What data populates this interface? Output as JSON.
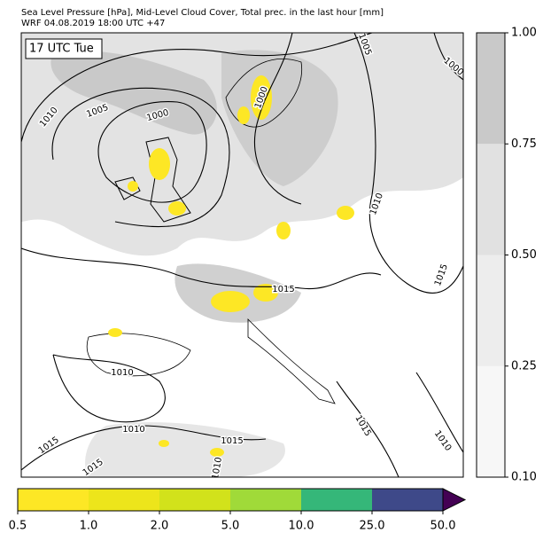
{
  "header": {
    "title": "Sea Level Pressure [hPa], Mid-Level Cloud Cover, Total prec. in the last hour [mm]",
    "subtitle": "WRF 04.08.2019 18:00 UTC +47"
  },
  "map": {
    "time_label": "17 UTC Tue",
    "contour_labels": [
      "1010",
      "1005",
      "1000",
      "1000",
      "1005",
      "1000",
      "1010",
      "1015",
      "1015",
      "1010",
      "1010",
      "1015",
      "1015",
      "1015",
      "1015",
      "1010",
      "1010"
    ]
  },
  "cloud_colorbar": {
    "ticks": [
      {
        "value": 0.1,
        "label": "0.10"
      },
      {
        "value": 0.25,
        "label": "0.25"
      },
      {
        "value": 0.5,
        "label": "0.50"
      },
      {
        "value": 0.75,
        "label": "0.75"
      },
      {
        "value": 1.0,
        "label": "1.00"
      }
    ],
    "colors": [
      "#f7f7f7",
      "#ededed",
      "#e1e1e1",
      "#c9c9c9"
    ]
  },
  "precip_colorbar": {
    "ticks": [
      {
        "value": 0.5,
        "label": "0.5"
      },
      {
        "value": 1.0,
        "label": "1.0"
      },
      {
        "value": 2.0,
        "label": "2.0"
      },
      {
        "value": 5.0,
        "label": "5.0"
      },
      {
        "value": 10.0,
        "label": "10.0"
      },
      {
        "value": 25.0,
        "label": "25.0"
      },
      {
        "value": 50.0,
        "label": "50.0"
      }
    ],
    "colors": [
      "#fde725",
      "#ede51b",
      "#d2e21b",
      "#a0da39",
      "#35b779",
      "#3e4989",
      "#440154"
    ]
  }
}
